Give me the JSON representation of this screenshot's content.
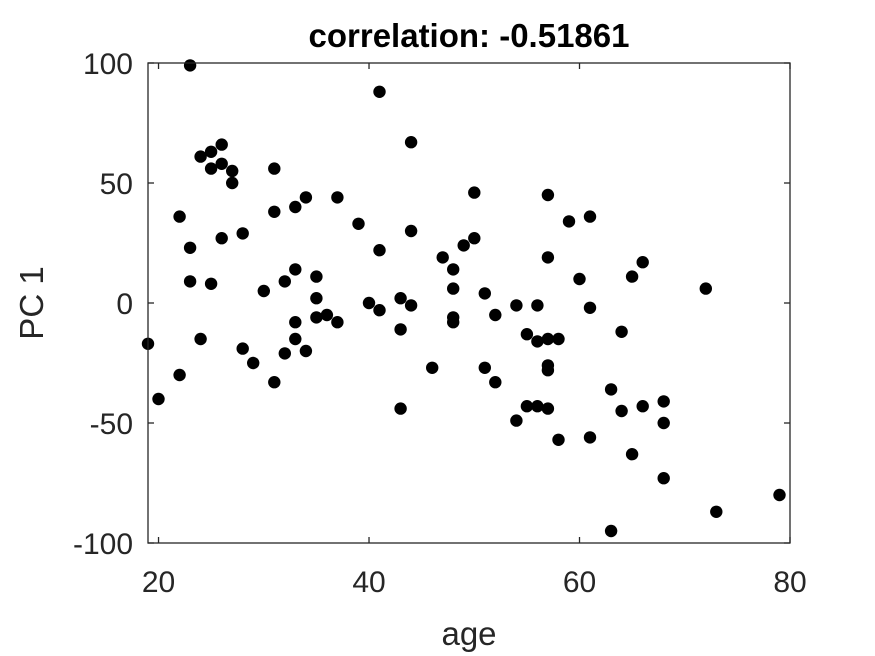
{
  "chart_data": {
    "type": "scatter",
    "title": "correlation: -0.51861",
    "xlabel": "age",
    "ylabel": "PC 1",
    "xlim": [
      19,
      80
    ],
    "ylim": [
      -100,
      100
    ],
    "xticks": [
      20,
      40,
      60,
      80
    ],
    "yticks": [
      -100,
      -50,
      0,
      50,
      100
    ],
    "grid": false,
    "marker_color": "#000000",
    "axis_color": "#262626",
    "points": [
      [
        19,
        -17
      ],
      [
        20,
        -40
      ],
      [
        22,
        36
      ],
      [
        22,
        -30
      ],
      [
        23,
        99
      ],
      [
        23,
        23
      ],
      [
        23,
        9
      ],
      [
        24,
        61
      ],
      [
        24,
        -15
      ],
      [
        25,
        63
      ],
      [
        25,
        56
      ],
      [
        25,
        8
      ],
      [
        26,
        66
      ],
      [
        26,
        58
      ],
      [
        26,
        27
      ],
      [
        27,
        55
      ],
      [
        27,
        50
      ],
      [
        28,
        29
      ],
      [
        28,
        -19
      ],
      [
        29,
        -25
      ],
      [
        30,
        5
      ],
      [
        31,
        56
      ],
      [
        31,
        38
      ],
      [
        31,
        -33
      ],
      [
        32,
        9
      ],
      [
        32,
        -21
      ],
      [
        33,
        40
      ],
      [
        33,
        14
      ],
      [
        33,
        -8
      ],
      [
        33,
        -15
      ],
      [
        34,
        44
      ],
      [
        34,
        -20
      ],
      [
        35,
        11
      ],
      [
        35,
        2
      ],
      [
        35,
        -6
      ],
      [
        36,
        -5
      ],
      [
        37,
        44
      ],
      [
        37,
        -8
      ],
      [
        39,
        33
      ],
      [
        40,
        0
      ],
      [
        41,
        88
      ],
      [
        41,
        22
      ],
      [
        41,
        -3
      ],
      [
        43,
        2
      ],
      [
        43,
        -11
      ],
      [
        43,
        -44
      ],
      [
        44,
        67
      ],
      [
        44,
        30
      ],
      [
        44,
        -1
      ],
      [
        46,
        -27
      ],
      [
        47,
        19
      ],
      [
        48,
        14
      ],
      [
        48,
        6
      ],
      [
        48,
        -6
      ],
      [
        48,
        -8
      ],
      [
        49,
        24
      ],
      [
        50,
        46
      ],
      [
        50,
        27
      ],
      [
        51,
        4
      ],
      [
        51,
        -27
      ],
      [
        52,
        -5
      ],
      [
        52,
        -33
      ],
      [
        54,
        -1
      ],
      [
        54,
        -49
      ],
      [
        55,
        -13
      ],
      [
        55,
        -43
      ],
      [
        56,
        -1
      ],
      [
        56,
        -16
      ],
      [
        56,
        -43
      ],
      [
        57,
        45
      ],
      [
        57,
        19
      ],
      [
        57,
        -15
      ],
      [
        57,
        -26
      ],
      [
        57,
        -28
      ],
      [
        57,
        -44
      ],
      [
        58,
        -15
      ],
      [
        58,
        -57
      ],
      [
        59,
        34
      ],
      [
        60,
        10
      ],
      [
        61,
        36
      ],
      [
        61,
        -2
      ],
      [
        61,
        -56
      ],
      [
        63,
        -36
      ],
      [
        63,
        -95
      ],
      [
        64,
        -12
      ],
      [
        64,
        -45
      ],
      [
        65,
        11
      ],
      [
        65,
        -63
      ],
      [
        66,
        17
      ],
      [
        66,
        -43
      ],
      [
        68,
        -41
      ],
      [
        68,
        -50
      ],
      [
        68,
        -73
      ],
      [
        72,
        6
      ],
      [
        73,
        -87
      ],
      [
        79,
        -80
      ]
    ]
  }
}
